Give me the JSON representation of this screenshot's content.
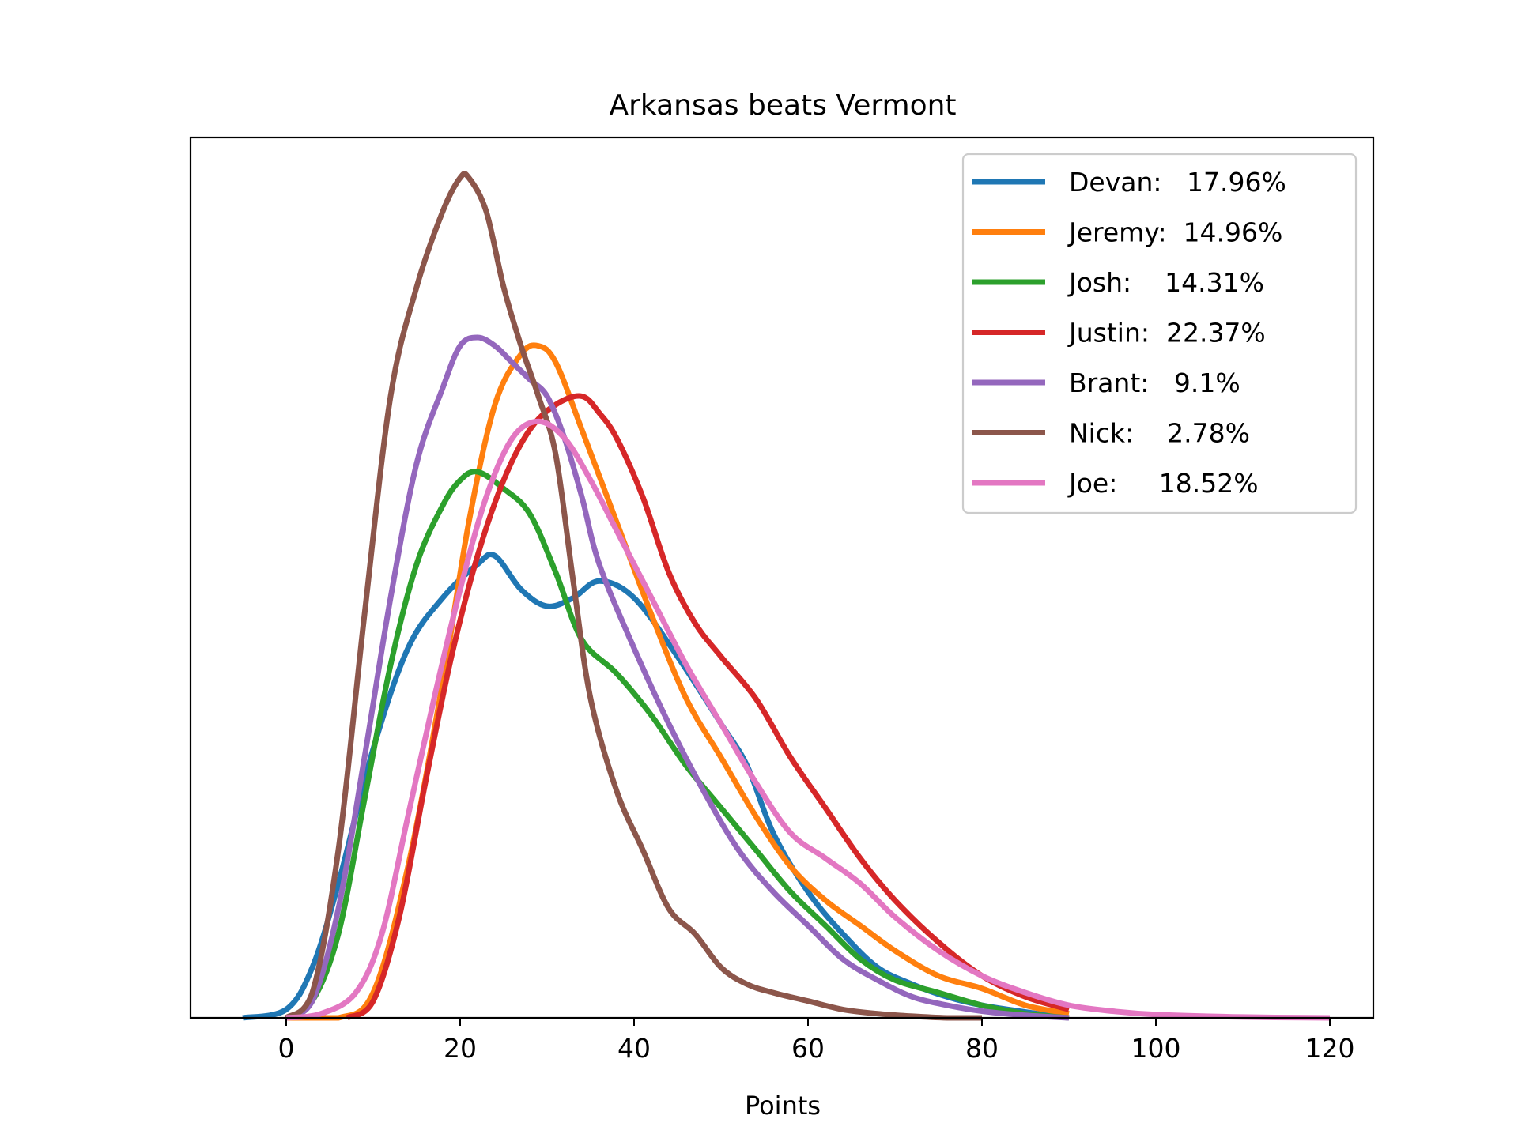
{
  "chart_data": {
    "type": "line",
    "title": "Arkansas beats Vermont",
    "xlabel": "Points",
    "ylabel": "",
    "xlim": [
      -11,
      125
    ],
    "ylim": [
      0,
      1
    ],
    "xticks": [
      0,
      20,
      40,
      60,
      80,
      100,
      120
    ],
    "yticks": [],
    "grid": false,
    "legend_position": "top-right",
    "series": [
      {
        "name": "Devan:   17.96%",
        "color": "#1f77b4",
        "x": [
          -5,
          0,
          3,
          6,
          10,
          14,
          18,
          22,
          24,
          27,
          30,
          33,
          36,
          40,
          45,
          50,
          53,
          56,
          60,
          64,
          68,
          72,
          76,
          80,
          85,
          90
        ],
        "y": [
          0,
          0.01,
          0.06,
          0.16,
          0.32,
          0.44,
          0.5,
          0.54,
          0.55,
          0.51,
          0.49,
          0.5,
          0.52,
          0.5,
          0.43,
          0.35,
          0.3,
          0.22,
          0.15,
          0.1,
          0.06,
          0.04,
          0.025,
          0.015,
          0.007,
          0
        ]
      },
      {
        "name": "Jeremy:  14.96%",
        "color": "#ff7f0e",
        "x": [
          0,
          6,
          10,
          14,
          18,
          21,
          24,
          27,
          29,
          31,
          34,
          38,
          42,
          46,
          50,
          54,
          58,
          62,
          66,
          70,
          75,
          80,
          85,
          90
        ],
        "y": [
          0,
          0,
          0.03,
          0.18,
          0.4,
          0.59,
          0.73,
          0.79,
          0.8,
          0.78,
          0.7,
          0.59,
          0.48,
          0.38,
          0.31,
          0.24,
          0.18,
          0.14,
          0.11,
          0.08,
          0.05,
          0.035,
          0.015,
          0.005
        ]
      },
      {
        "name": "Josh:    14.31%",
        "color": "#2ca02c",
        "x": [
          0,
          3,
          6,
          9,
          12,
          15,
          18,
          20,
          22,
          25,
          28,
          31,
          34,
          38,
          42,
          46,
          50,
          54,
          58,
          62,
          66,
          70,
          75,
          80,
          85,
          90
        ],
        "y": [
          0,
          0.02,
          0.1,
          0.26,
          0.42,
          0.54,
          0.61,
          0.64,
          0.65,
          0.63,
          0.6,
          0.53,
          0.45,
          0.41,
          0.36,
          0.3,
          0.25,
          0.2,
          0.15,
          0.11,
          0.07,
          0.045,
          0.03,
          0.015,
          0.005,
          0
        ]
      },
      {
        "name": "Justin:  22.37%",
        "color": "#d62728",
        "x": [
          7,
          10,
          13,
          16,
          19,
          22,
          25,
          28,
          31,
          34,
          36,
          38,
          41,
          44,
          47,
          50,
          54,
          58,
          62,
          66,
          70,
          75,
          80,
          85,
          90
        ],
        "y": [
          0,
          0.02,
          0.12,
          0.28,
          0.43,
          0.55,
          0.64,
          0.7,
          0.73,
          0.74,
          0.72,
          0.69,
          0.62,
          0.53,
          0.47,
          0.43,
          0.38,
          0.31,
          0.25,
          0.19,
          0.14,
          0.09,
          0.05,
          0.025,
          0.01
        ]
      },
      {
        "name": "Brant:   9.1%",
        "color": "#9467bd",
        "x": [
          0,
          3,
          6,
          9,
          12,
          15,
          18,
          20,
          22,
          24,
          26,
          28,
          30,
          32,
          34,
          36,
          40,
          44,
          48,
          52,
          56,
          60,
          64,
          68,
          72,
          76,
          80,
          85,
          90
        ],
        "y": [
          0,
          0.02,
          0.13,
          0.31,
          0.5,
          0.66,
          0.75,
          0.8,
          0.81,
          0.8,
          0.78,
          0.76,
          0.74,
          0.69,
          0.62,
          0.54,
          0.44,
          0.35,
          0.27,
          0.2,
          0.15,
          0.11,
          0.07,
          0.045,
          0.025,
          0.015,
          0.008,
          0.003,
          0
        ]
      },
      {
        "name": "Nick:    2.78%",
        "color": "#8c564b",
        "x": [
          0,
          3,
          6,
          9,
          12,
          15,
          18,
          20,
          21,
          23,
          25,
          27,
          29,
          31,
          33,
          35,
          38,
          41,
          44,
          47,
          50,
          53,
          56,
          60,
          64,
          68,
          72,
          76,
          80
        ],
        "y": [
          0,
          0.03,
          0.2,
          0.48,
          0.74,
          0.87,
          0.96,
          1.0,
          1.0,
          0.96,
          0.87,
          0.8,
          0.74,
          0.67,
          0.52,
          0.38,
          0.27,
          0.2,
          0.13,
          0.1,
          0.06,
          0.04,
          0.03,
          0.02,
          0.01,
          0.005,
          0.002,
          0,
          0
        ]
      },
      {
        "name": "Joe:     18.52%",
        "color": "#e377c2",
        "x": [
          0,
          4,
          8,
          11,
          14,
          17,
          20,
          23,
          26,
          29,
          32,
          35,
          38,
          42,
          46,
          50,
          54,
          58,
          62,
          66,
          70,
          75,
          80,
          85,
          90,
          95,
          100,
          110,
          120
        ],
        "y": [
          0,
          0.005,
          0.03,
          0.1,
          0.24,
          0.38,
          0.51,
          0.62,
          0.69,
          0.71,
          0.69,
          0.64,
          0.58,
          0.5,
          0.42,
          0.35,
          0.28,
          0.22,
          0.19,
          0.16,
          0.12,
          0.08,
          0.05,
          0.03,
          0.015,
          0.008,
          0.004,
          0.001,
          0
        ]
      }
    ]
  }
}
